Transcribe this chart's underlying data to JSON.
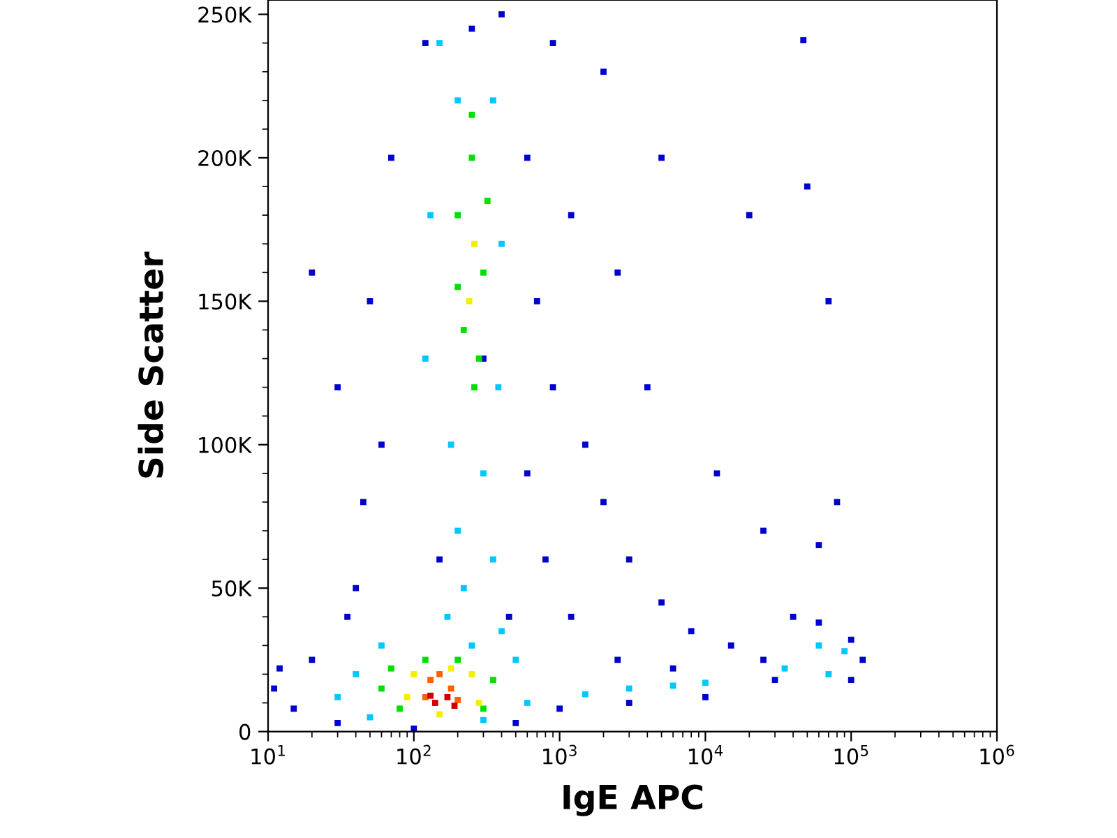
{
  "chart_data": {
    "type": "scatter",
    "xlabel": "IgE APC",
    "ylabel": "Side Scatter",
    "log": "x",
    "marker": "square",
    "grid": false,
    "xlim": [
      10,
      1000000
    ],
    "xticks": [
      {
        "value": 10,
        "label": "10$^{1}$"
      },
      {
        "value": 100,
        "label": "10$^{2}$"
      },
      {
        "value": 1000,
        "label": "10$^{3}$"
      },
      {
        "value": 10000,
        "label": "10$^{4}$"
      },
      {
        "value": 100000,
        "label": "10$^{5}$"
      },
      {
        "value": 1000000,
        "label": "10$^{6}$"
      }
    ],
    "ylim": [
      0,
      255000
    ],
    "yticks": [
      0,
      {
        "value": 50000,
        "label": "50K"
      },
      {
        "value": 100000,
        "label": "100K"
      },
      {
        "value": 150000,
        "label": "150K"
      },
      {
        "value": 200000,
        "label": "200K"
      },
      {
        "value": 250000,
        "label": "250K"
      }
    ],
    "series": [
      {
        "color": "#0000cc",
        "x": [
          60,
          50,
          70,
          120,
          400,
          600,
          700,
          900,
          1500,
          2000,
          3000,
          5000,
          8000,
          15000,
          25000,
          40000,
          60000,
          100000,
          120000,
          100000,
          30000,
          10000,
          3000,
          1000,
          500,
          100,
          30,
          15,
          11,
          12,
          20,
          40,
          30,
          20,
          45,
          35,
          300,
          800,
          1200,
          2500,
          6000,
          20000,
          47000,
          70000,
          50000,
          5000,
          4000,
          12000,
          25000,
          1200,
          2000,
          900,
          2500,
          60000,
          80000,
          150,
          450,
          600,
          250
        ],
        "values": [
          100000,
          150000,
          200000,
          240000,
          250000,
          200000,
          150000,
          120000,
          100000,
          80000,
          60000,
          45000,
          35000,
          30000,
          25000,
          40000,
          38000,
          32000,
          25000,
          18000,
          18000,
          12000,
          10000,
          8000,
          3000,
          1000,
          3000,
          8000,
          15000,
          22000,
          25000,
          50000,
          120000,
          160000,
          80000,
          40000,
          130000,
          60000,
          40000,
          25000,
          22000,
          180000,
          241000,
          150000,
          190000,
          200000,
          120000,
          90000,
          70000,
          180000,
          230000,
          240000,
          160000,
          65000,
          80000,
          60000,
          40000,
          90000,
          245000
        ]
      },
      {
        "color": "#00c8ff",
        "x": [
          150,
          200,
          350,
          130,
          400,
          120,
          380,
          180,
          300,
          200,
          350,
          170,
          400,
          60,
          40,
          30,
          50,
          300,
          600,
          500,
          1500,
          3000,
          6000,
          10000,
          35000,
          60000,
          90000,
          70000,
          250,
          220
        ],
        "values": [
          240000,
          220000,
          220000,
          180000,
          170000,
          130000,
          120000,
          100000,
          90000,
          70000,
          60000,
          40000,
          35000,
          30000,
          20000,
          12000,
          5000,
          4000,
          10000,
          25000,
          13000,
          15000,
          16000,
          17000,
          22000,
          30000,
          28000,
          20000,
          30000,
          50000
        ]
      },
      {
        "color": "#00e000",
        "x": [
          250,
          200,
          300,
          220,
          280,
          260,
          200,
          320,
          60,
          80,
          70,
          300,
          350,
          200,
          120,
          250
        ],
        "values": [
          200000,
          180000,
          160000,
          140000,
          130000,
          120000,
          155000,
          185000,
          15000,
          8000,
          22000,
          8000,
          18000,
          25000,
          25000,
          215000
        ]
      },
      {
        "color": "#f0f000",
        "x": [
          90,
          100,
          250,
          280,
          150,
          180,
          260,
          240
        ],
        "values": [
          12000,
          20000,
          20000,
          10000,
          6000,
          22000,
          170000,
          150000
        ]
      },
      {
        "color": "#ff6000",
        "x": [
          130,
          180,
          120,
          200,
          150
        ],
        "values": [
          18000,
          15000,
          12000,
          11000,
          20000
        ]
      },
      {
        "color": "#d00000",
        "x": [
          140,
          170,
          130,
          190
        ],
        "values": [
          10000,
          12000,
          12500,
          9000
        ]
      }
    ]
  }
}
